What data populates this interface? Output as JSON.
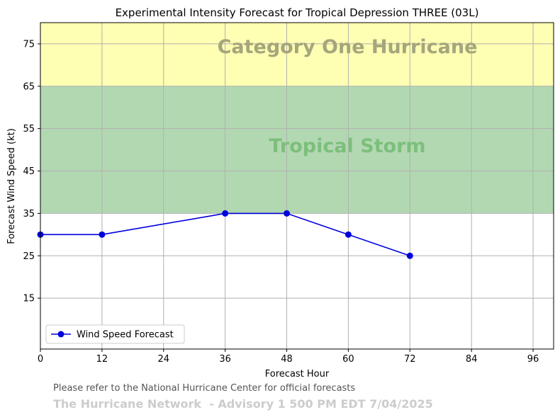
{
  "chart_data": {
    "type": "line",
    "title": "Experimental Intensity Forecast for Tropical Depression THREE (03L)",
    "xlabel": "Forecast Hour",
    "ylabel": "Forecast Wind Speed (kt)",
    "xlim": [
      0,
      100
    ],
    "ylim": [
      3,
      80
    ],
    "xticks": [
      0,
      12,
      24,
      36,
      48,
      60,
      72,
      84,
      96
    ],
    "yticks": [
      15,
      25,
      35,
      45,
      55,
      65,
      75
    ],
    "grid": true,
    "legend_position": "bottom-left",
    "bands": [
      {
        "label": "Tropical Storm",
        "from": 35,
        "to": 65,
        "color": "#b2d8b2",
        "label_color": "#7cbf7c"
      },
      {
        "label": "Category One Hurricane",
        "from": 65,
        "to": 80,
        "color": "#ffffb3",
        "label_color": "#a4a67c"
      }
    ],
    "series": [
      {
        "name": "Wind Speed Forecast",
        "color": "#0000dd",
        "x": [
          0,
          12,
          36,
          48,
          60,
          72
        ],
        "y": [
          30,
          30,
          35,
          35,
          30,
          25
        ]
      }
    ]
  },
  "footer": {
    "note": "Please refer to the National Hurricane Center for official forecasts",
    "brand": "The Hurricane Network  - Advisory 1 500 PM EDT 7/04/2025"
  }
}
